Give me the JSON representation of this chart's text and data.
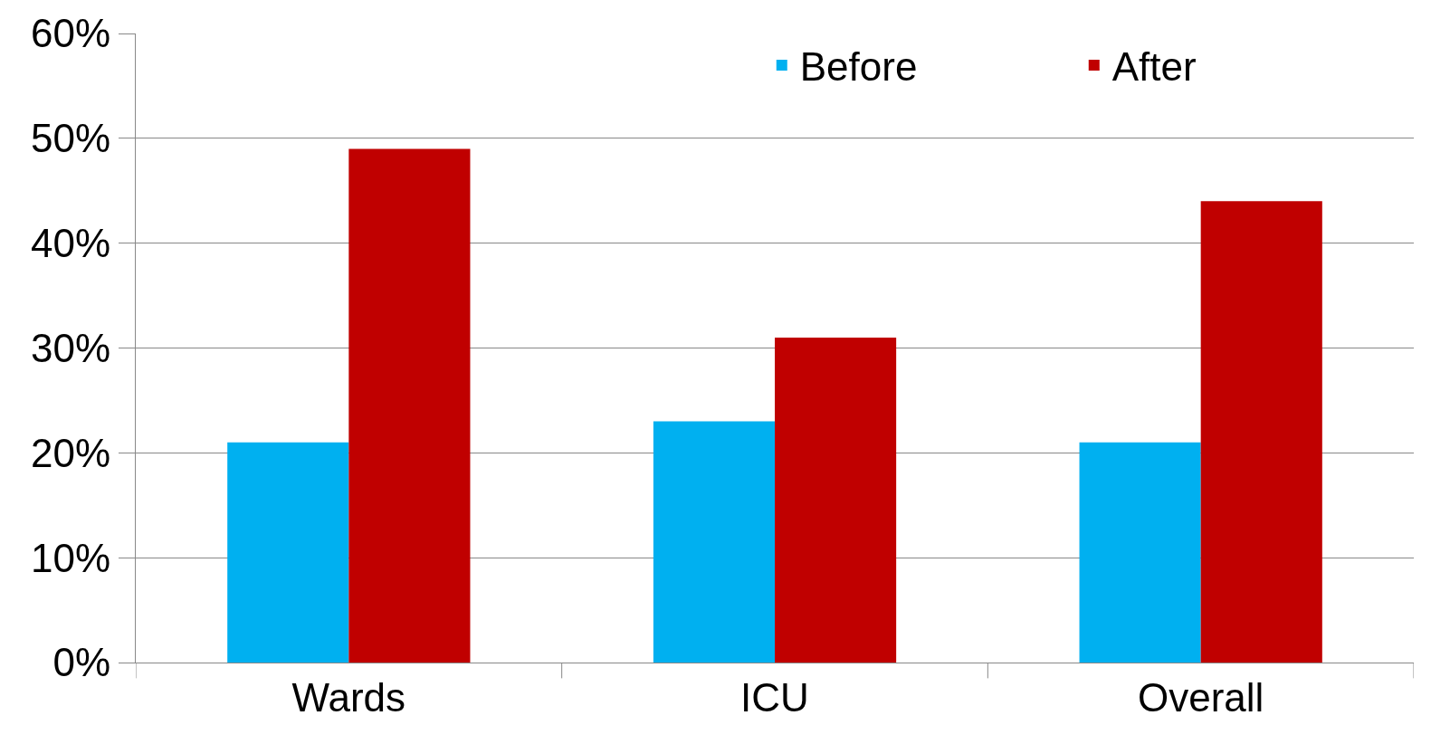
{
  "chart_data": {
    "type": "bar",
    "categories": [
      "Wards",
      "ICU",
      "Overall"
    ],
    "series": [
      {
        "name": "Before",
        "color": "#00b0f0",
        "values": [
          21,
          23,
          21
        ]
      },
      {
        "name": "After",
        "color": "#c00000",
        "values": [
          49,
          31,
          44
        ]
      }
    ],
    "ylim": [
      0,
      60
    ],
    "yticks": [
      {
        "value": 0,
        "label": "0%"
      },
      {
        "value": 10,
        "label": "10%"
      },
      {
        "value": 20,
        "label": "20%"
      },
      {
        "value": 30,
        "label": "30%"
      },
      {
        "value": 40,
        "label": "40%"
      },
      {
        "value": 50,
        "label": "50%"
      },
      {
        "value": 60,
        "label": "60%"
      }
    ],
    "grid": "y",
    "legend": "top right"
  }
}
